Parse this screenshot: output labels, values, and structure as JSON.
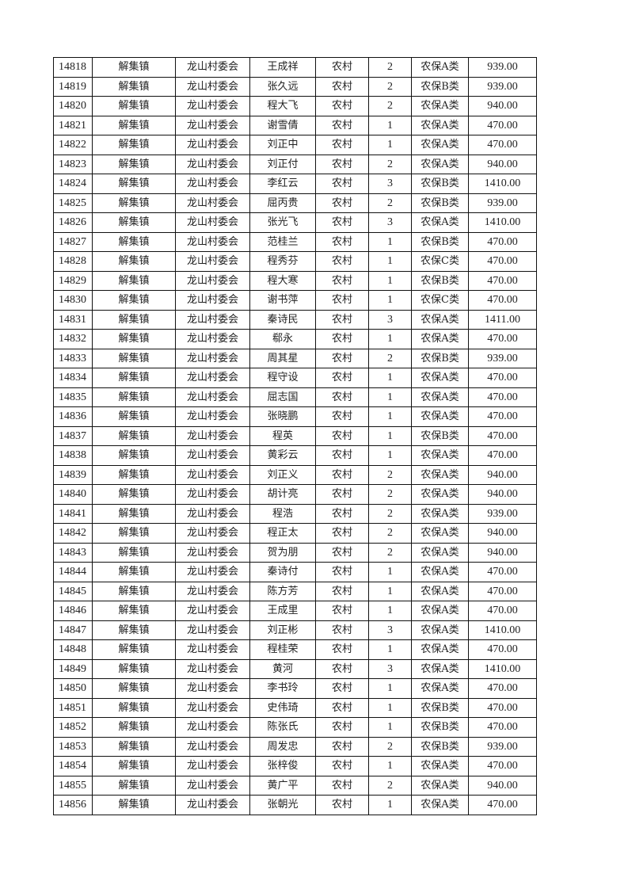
{
  "table": {
    "rows": [
      [
        "14818",
        "解集镇",
        "龙山村委会",
        "王成祥",
        "农村",
        "2",
        "农保A类",
        "939.00"
      ],
      [
        "14819",
        "解集镇",
        "龙山村委会",
        "张久远",
        "农村",
        "2",
        "农保B类",
        "939.00"
      ],
      [
        "14820",
        "解集镇",
        "龙山村委会",
        "程大飞",
        "农村",
        "2",
        "农保A类",
        "940.00"
      ],
      [
        "14821",
        "解集镇",
        "龙山村委会",
        "谢雪倩",
        "农村",
        "1",
        "农保A类",
        "470.00"
      ],
      [
        "14822",
        "解集镇",
        "龙山村委会",
        "刘正中",
        "农村",
        "1",
        "农保A类",
        "470.00"
      ],
      [
        "14823",
        "解集镇",
        "龙山村委会",
        "刘正付",
        "农村",
        "2",
        "农保A类",
        "940.00"
      ],
      [
        "14824",
        "解集镇",
        "龙山村委会",
        "李红云",
        "农村",
        "3",
        "农保B类",
        "1410.00"
      ],
      [
        "14825",
        "解集镇",
        "龙山村委会",
        "屈丙贵",
        "农村",
        "2",
        "农保B类",
        "939.00"
      ],
      [
        "14826",
        "解集镇",
        "龙山村委会",
        "张光飞",
        "农村",
        "3",
        "农保A类",
        "1410.00"
      ],
      [
        "14827",
        "解集镇",
        "龙山村委会",
        "范桂兰",
        "农村",
        "1",
        "农保B类",
        "470.00"
      ],
      [
        "14828",
        "解集镇",
        "龙山村委会",
        "程秀芬",
        "农村",
        "1",
        "农保C类",
        "470.00"
      ],
      [
        "14829",
        "解集镇",
        "龙山村委会",
        "程大寒",
        "农村",
        "1",
        "农保B类",
        "470.00"
      ],
      [
        "14830",
        "解集镇",
        "龙山村委会",
        "谢书萍",
        "农村",
        "1",
        "农保C类",
        "470.00"
      ],
      [
        "14831",
        "解集镇",
        "龙山村委会",
        "秦诗民",
        "农村",
        "3",
        "农保A类",
        "1411.00"
      ],
      [
        "14832",
        "解集镇",
        "龙山村委会",
        "郗永",
        "农村",
        "1",
        "农保A类",
        "470.00"
      ],
      [
        "14833",
        "解集镇",
        "龙山村委会",
        "周其星",
        "农村",
        "2",
        "农保B类",
        "939.00"
      ],
      [
        "14834",
        "解集镇",
        "龙山村委会",
        "程守设",
        "农村",
        "1",
        "农保A类",
        "470.00"
      ],
      [
        "14835",
        "解集镇",
        "龙山村委会",
        "屈志国",
        "农村",
        "1",
        "农保A类",
        "470.00"
      ],
      [
        "14836",
        "解集镇",
        "龙山村委会",
        "张晓鹏",
        "农村",
        "1",
        "农保A类",
        "470.00"
      ],
      [
        "14837",
        "解集镇",
        "龙山村委会",
        "程英",
        "农村",
        "1",
        "农保B类",
        "470.00"
      ],
      [
        "14838",
        "解集镇",
        "龙山村委会",
        "黄彩云",
        "农村",
        "1",
        "农保A类",
        "470.00"
      ],
      [
        "14839",
        "解集镇",
        "龙山村委会",
        "刘正义",
        "农村",
        "2",
        "农保A类",
        "940.00"
      ],
      [
        "14840",
        "解集镇",
        "龙山村委会",
        "胡计亮",
        "农村",
        "2",
        "农保A类",
        "940.00"
      ],
      [
        "14841",
        "解集镇",
        "龙山村委会",
        "程浩",
        "农村",
        "2",
        "农保A类",
        "939.00"
      ],
      [
        "14842",
        "解集镇",
        "龙山村委会",
        "程正太",
        "农村",
        "2",
        "农保A类",
        "940.00"
      ],
      [
        "14843",
        "解集镇",
        "龙山村委会",
        "贺为朋",
        "农村",
        "2",
        "农保A类",
        "940.00"
      ],
      [
        "14844",
        "解集镇",
        "龙山村委会",
        "秦诗付",
        "农村",
        "1",
        "农保A类",
        "470.00"
      ],
      [
        "14845",
        "解集镇",
        "龙山村委会",
        "陈方芳",
        "农村",
        "1",
        "农保A类",
        "470.00"
      ],
      [
        "14846",
        "解集镇",
        "龙山村委会",
        "王成里",
        "农村",
        "1",
        "农保A类",
        "470.00"
      ],
      [
        "14847",
        "解集镇",
        "龙山村委会",
        "刘正彬",
        "农村",
        "3",
        "农保A类",
        "1410.00"
      ],
      [
        "14848",
        "解集镇",
        "龙山村委会",
        "程桂荣",
        "农村",
        "1",
        "农保A类",
        "470.00"
      ],
      [
        "14849",
        "解集镇",
        "龙山村委会",
        "黄河",
        "农村",
        "3",
        "农保A类",
        "1410.00"
      ],
      [
        "14850",
        "解集镇",
        "龙山村委会",
        "李书玲",
        "农村",
        "1",
        "农保A类",
        "470.00"
      ],
      [
        "14851",
        "解集镇",
        "龙山村委会",
        "史伟琦",
        "农村",
        "1",
        "农保B类",
        "470.00"
      ],
      [
        "14852",
        "解集镇",
        "龙山村委会",
        "陈张氏",
        "农村",
        "1",
        "农保B类",
        "470.00"
      ],
      [
        "14853",
        "解集镇",
        "龙山村委会",
        "周发忠",
        "农村",
        "2",
        "农保B类",
        "939.00"
      ],
      [
        "14854",
        "解集镇",
        "龙山村委会",
        "张梓俊",
        "农村",
        "1",
        "农保A类",
        "470.00"
      ],
      [
        "14855",
        "解集镇",
        "龙山村委会",
        "黄广平",
        "农村",
        "2",
        "农保A类",
        "940.00"
      ],
      [
        "14856",
        "解集镇",
        "龙山村委会",
        "张朝光",
        "农村",
        "1",
        "农保A类",
        "470.00"
      ]
    ]
  }
}
